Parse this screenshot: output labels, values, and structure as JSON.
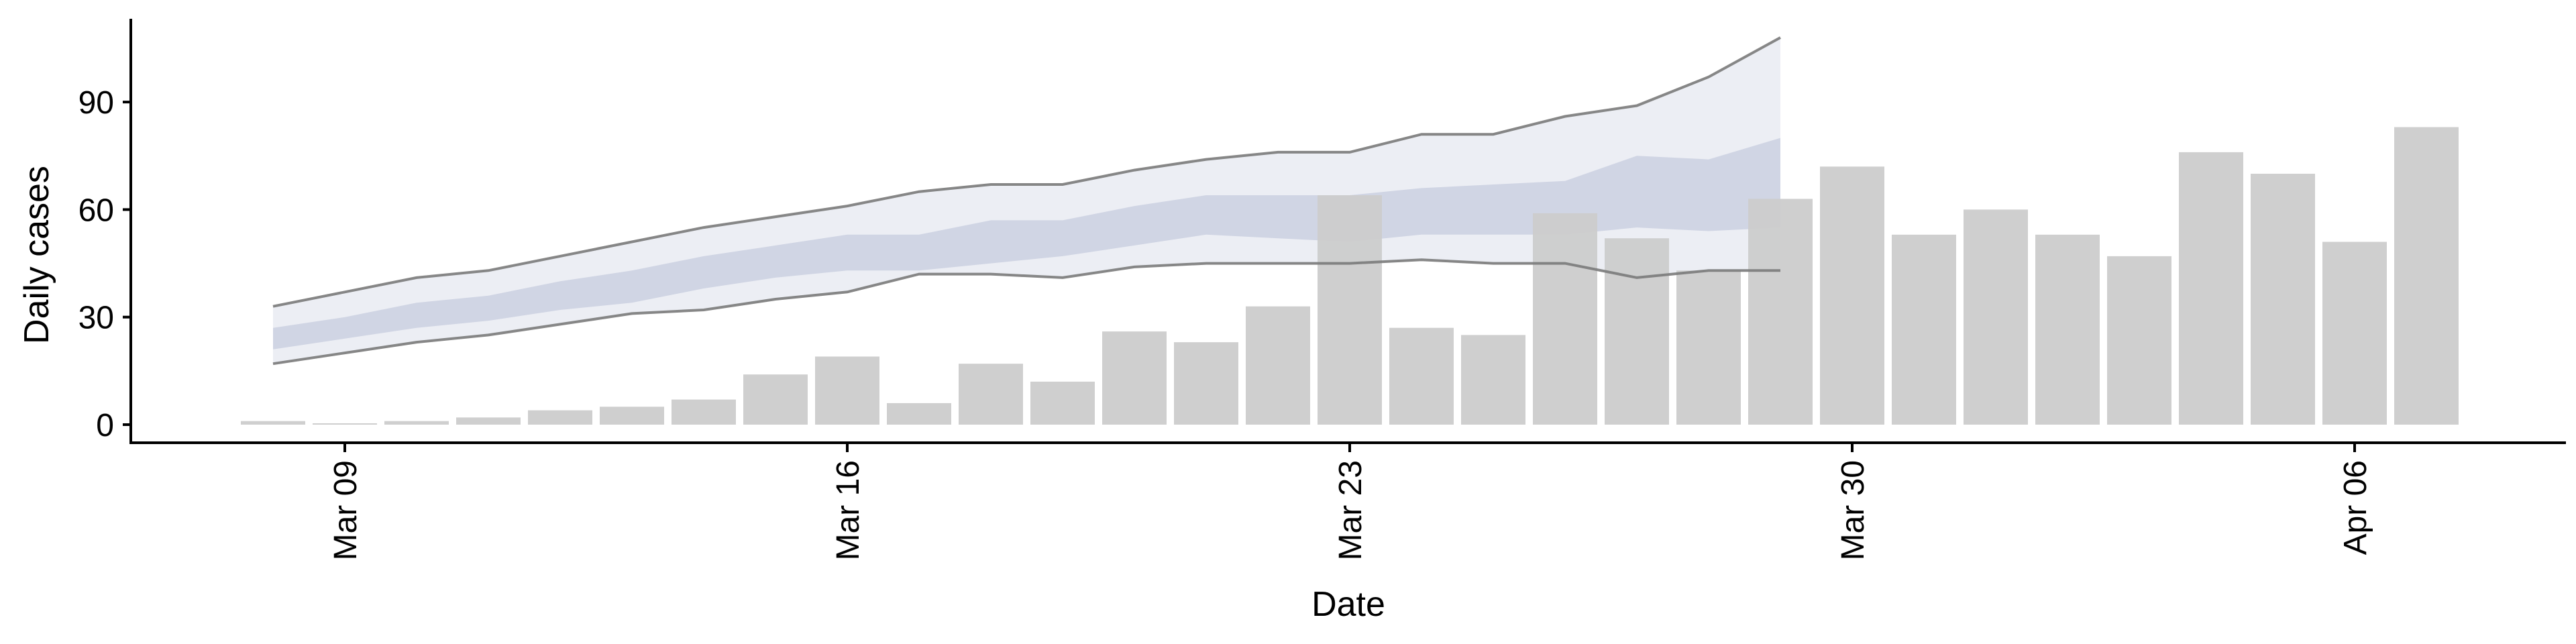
{
  "chart_data": {
    "type": "bar",
    "xlabel": "Date",
    "ylabel": "Daily cases",
    "x_ticks": [
      "Mar 09",
      "Mar 16",
      "Mar 23",
      "Mar 30",
      "Apr 06"
    ],
    "y_ticks": [
      0,
      30,
      60,
      90
    ],
    "ylim": [
      -5,
      114
    ],
    "grid": false,
    "legend": "none",
    "colors": {
      "bars": "#cccccc",
      "band_outer": "#e9ebf2",
      "band_inner": "#c9cee0",
      "band_lines": "#7a7a7a",
      "axis": "#000000"
    },
    "bars": {
      "dates": [
        "2020-03-08",
        "2020-03-09",
        "2020-03-10",
        "2020-03-11",
        "2020-03-12",
        "2020-03-13",
        "2020-03-14",
        "2020-03-15",
        "2020-03-16",
        "2020-03-17",
        "2020-03-18",
        "2020-03-19",
        "2020-03-20",
        "2020-03-21",
        "2020-03-22",
        "2020-03-23",
        "2020-03-24",
        "2020-03-25",
        "2020-03-26",
        "2020-03-27",
        "2020-03-28",
        "2020-03-29",
        "2020-03-30",
        "2020-03-31",
        "2020-04-01",
        "2020-04-02",
        "2020-04-03",
        "2020-04-04",
        "2020-04-05",
        "2020-04-06",
        "2020-04-07"
      ],
      "values": [
        1,
        0,
        1,
        2,
        4,
        5,
        7,
        14,
        19,
        6,
        17,
        12,
        26,
        23,
        33,
        64,
        27,
        25,
        59,
        52,
        43,
        63,
        72,
        53,
        60,
        53,
        47,
        76,
        70,
        51,
        83
      ]
    },
    "fit": {
      "dates": [
        "2020-03-08",
        "2020-03-09",
        "2020-03-10",
        "2020-03-11",
        "2020-03-12",
        "2020-03-13",
        "2020-03-14",
        "2020-03-15",
        "2020-03-16",
        "2020-03-17",
        "2020-03-18",
        "2020-03-19",
        "2020-03-20",
        "2020-03-21",
        "2020-03-22",
        "2020-03-23",
        "2020-03-24",
        "2020-03-25",
        "2020-03-26",
        "2020-03-27",
        "2020-03-28",
        "2020-03-29"
      ],
      "outer_upper": [
        33,
        37,
        41,
        43,
        47,
        51,
        55,
        58,
        61,
        65,
        67,
        67,
        71,
        74,
        76,
        76,
        81,
        81,
        86,
        89,
        97,
        108
      ],
      "outer_lower": [
        17,
        20,
        23,
        25,
        28,
        31,
        32,
        35,
        37,
        42,
        42,
        41,
        44,
        45,
        45,
        45,
        46,
        45,
        45,
        41,
        43,
        43
      ],
      "inner_upper": [
        27,
        30,
        34,
        36,
        40,
        43,
        47,
        50,
        53,
        53,
        57,
        57,
        61,
        64,
        64,
        64,
        66,
        67,
        68,
        75,
        74,
        80
      ],
      "inner_lower": [
        21,
        24,
        27,
        29,
        32,
        34,
        38,
        41,
        43,
        43,
        45,
        47,
        50,
        53,
        52,
        51,
        53,
        53,
        53,
        55,
        54,
        55
      ]
    }
  }
}
